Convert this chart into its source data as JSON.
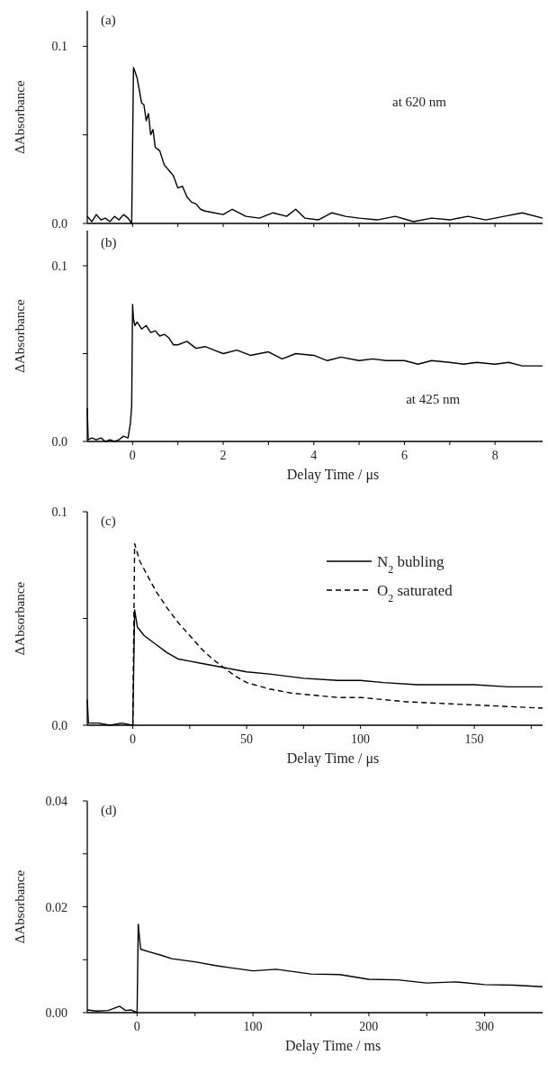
{
  "chart_data": [
    {
      "type": "line",
      "ylabel": "ΔAbsorbance",
      "annotations": [
        "(a)",
        "at 620 nm"
      ],
      "xlim": [
        -1,
        9.05
      ],
      "ylim": [
        0,
        0.12
      ],
      "tick_labels": "y",
      "xticks": [
        0,
        {
          "value": 1,
          "label": null
        },
        2,
        {
          "value": 3,
          "label": null
        },
        4,
        {
          "value": 5,
          "label": null
        },
        6,
        {
          "value": 7,
          "label": null
        },
        8
      ],
      "yticks": [
        {
          "value": 0,
          "label": "0.0"
        },
        {
          "value": 0.05,
          "label": null
        },
        {
          "value": 0.1,
          "label": "0.1"
        }
      ],
      "series": [
        {
          "color": "#000000",
          "line_style": "solid",
          "x": [
            -1,
            -0.9,
            -0.8,
            -0.7,
            -0.6,
            -0.5,
            -0.4,
            -0.3,
            -0.2,
            -0.1,
            -0.02,
            0.02,
            0.05,
            0.1,
            0.15,
            0.2,
            0.25,
            0.3,
            0.35,
            0.4,
            0.45,
            0.5,
            0.6,
            0.7,
            0.8,
            0.9,
            1.0,
            1.1,
            1.2,
            1.3,
            1.4,
            1.5,
            1.6,
            1.8,
            2.0,
            2.2,
            2.5,
            2.8,
            3.1,
            3.4,
            3.6,
            3.8,
            4.1,
            4.4,
            4.7,
            5.0,
            5.4,
            5.8,
            6.2,
            6.6,
            7.0,
            7.4,
            7.8,
            8.2,
            8.6,
            9.05
          ],
          "values": [
            0.004,
            0.001,
            0.005,
            0.002,
            0.003,
            0.001,
            0.004,
            0.002,
            0.005,
            0.003,
            0.0,
            0.088,
            0.086,
            0.082,
            0.075,
            0.068,
            0.067,
            0.058,
            0.062,
            0.05,
            0.053,
            0.043,
            0.041,
            0.033,
            0.03,
            0.027,
            0.02,
            0.021,
            0.015,
            0.012,
            0.011,
            0.008,
            0.007,
            0.006,
            0.005,
            0.008,
            0.004,
            0.003,
            0.006,
            0.004,
            0.008,
            0.003,
            0.002,
            0.006,
            0.004,
            0.003,
            0.002,
            0.004,
            0.001,
            0.003,
            0.002,
            0.004,
            0.002,
            0.004,
            0.006,
            0.003
          ]
        }
      ]
    },
    {
      "type": "line",
      "ylabel": "ΔAbsorbance",
      "xlabel": "Delay Time / μs",
      "annotations": [
        "(b)",
        "at 425 nm"
      ],
      "xlim": [
        -1,
        9.05
      ],
      "ylim": [
        0,
        0.12
      ],
      "xticks": [
        0,
        {
          "value": 1,
          "label": null
        },
        2,
        {
          "value": 3,
          "label": null
        },
        4,
        {
          "value": 5,
          "label": null
        },
        6,
        {
          "value": 7,
          "label": null
        },
        8
      ],
      "yticks": [
        {
          "value": 0,
          "label": "0.0"
        },
        {
          "value": 0.05,
          "label": null
        },
        {
          "value": 0.1,
          "label": "0.1"
        }
      ],
      "series": [
        {
          "color": "#000000",
          "line_style": "solid",
          "x": [
            -1,
            -0.98,
            -0.9,
            -0.8,
            -0.7,
            -0.6,
            -0.5,
            -0.4,
            -0.3,
            -0.2,
            -0.1,
            -0.05,
            -0.02,
            0.0,
            0.02,
            0.05,
            0.1,
            0.2,
            0.3,
            0.4,
            0.5,
            0.6,
            0.7,
            0.8,
            0.9,
            1.0,
            1.2,
            1.4,
            1.6,
            1.8,
            2.0,
            2.3,
            2.6,
            3.0,
            3.3,
            3.6,
            4.0,
            4.3,
            4.6,
            5.0,
            5.3,
            5.6,
            6.0,
            6.3,
            6.6,
            7.0,
            7.3,
            7.6,
            8.0,
            8.3,
            8.6,
            9.05
          ],
          "values": [
            0.019,
            0.001,
            0.002,
            0.001,
            0.002,
            0.0,
            0.001,
            0.0,
            0.001,
            0.003,
            0.002,
            0.01,
            0.02,
            0.078,
            0.07,
            0.066,
            0.068,
            0.064,
            0.066,
            0.062,
            0.063,
            0.06,
            0.061,
            0.059,
            0.055,
            0.055,
            0.057,
            0.053,
            0.054,
            0.052,
            0.05,
            0.052,
            0.049,
            0.051,
            0.047,
            0.05,
            0.049,
            0.046,
            0.048,
            0.046,
            0.047,
            0.046,
            0.046,
            0.044,
            0.046,
            0.045,
            0.044,
            0.045,
            0.044,
            0.045,
            0.043,
            0.043
          ]
        }
      ]
    },
    {
      "type": "line",
      "ylabel": "ΔAbsorbance",
      "xlabel": "Delay Time / μs",
      "annotations": [
        "(c)"
      ],
      "xlim": [
        -20,
        180
      ],
      "ylim": [
        0,
        0.1
      ],
      "legend": "top right",
      "xticks": [
        0,
        {
          "value": 25,
          "label": null
        },
        50,
        {
          "value": 75,
          "label": null
        },
        100,
        {
          "value": 125,
          "label": null
        },
        150,
        {
          "value": 175,
          "label": null
        }
      ],
      "yticks": [
        {
          "value": 0,
          "label": "0.0"
        },
        {
          "value": 0.05,
          "label": null
        },
        {
          "value": 0.1,
          "label": "0.1"
        }
      ],
      "series": [
        {
          "name": "N$_{2}$ bubling",
          "color": "#000000",
          "line_style": "solid",
          "x": [
            -20,
            -19.5,
            -15,
            -10,
            -5,
            0,
            0.8,
            2,
            5,
            10,
            15,
            20,
            25,
            30,
            40,
            50,
            60,
            75,
            90,
            100,
            110,
            125,
            140,
            150,
            165,
            180
          ],
          "values": [
            0.012,
            0.001,
            0.001,
            0.0,
            0.001,
            0.0,
            0.054,
            0.046,
            0.042,
            0.038,
            0.034,
            0.031,
            0.03,
            0.029,
            0.027,
            0.025,
            0.024,
            0.022,
            0.021,
            0.021,
            0.02,
            0.019,
            0.019,
            0.019,
            0.018,
            0.018
          ]
        },
        {
          "name": "O$_{2}$ saturated",
          "color": "#000000",
          "line_style": "dashed",
          "x": [
            0,
            0.8,
            3,
            5,
            10,
            15,
            20,
            25,
            30,
            35,
            40,
            45,
            50,
            60,
            70,
            80,
            90,
            100,
            120,
            140,
            160,
            180
          ],
          "values": [
            0.0,
            0.085,
            0.077,
            0.073,
            0.063,
            0.055,
            0.048,
            0.042,
            0.036,
            0.031,
            0.027,
            0.023,
            0.02,
            0.017,
            0.015,
            0.014,
            0.013,
            0.013,
            0.011,
            0.01,
            0.009,
            0.008
          ]
        }
      ]
    },
    {
      "type": "line",
      "ylabel": "ΔAbsorbance",
      "xlabel": "Delay Time / ms",
      "annotations": [
        "(d)"
      ],
      "xlim": [
        -43,
        350
      ],
      "ylim": [
        0,
        0.04
      ],
      "xticks": [
        0,
        {
          "value": 50,
          "label": null
        },
        100,
        {
          "value": 150,
          "label": null
        },
        200,
        {
          "value": 250,
          "label": null
        },
        300
      ],
      "yticks": [
        {
          "value": 0,
          "label": "0.00"
        },
        {
          "value": 0.01,
          "label": null
        },
        {
          "value": 0.02,
          "label": "0.02"
        },
        {
          "value": 0.03,
          "label": null
        },
        {
          "value": 0.04,
          "label": "0.04"
        }
      ],
      "series": [
        {
          "color": "#000000",
          "line_style": "solid",
          "x": [
            -43,
            -35,
            -25,
            -15,
            -10,
            -5,
            0,
            1,
            3,
            10,
            20,
            30,
            50,
            70,
            100,
            120,
            150,
            175,
            200,
            225,
            250,
            275,
            300,
            325,
            350
          ],
          "values": [
            0.0005,
            0.0003,
            0.0004,
            0.0012,
            0.0004,
            0.0005,
            0.0,
            0.0167,
            0.012,
            0.0115,
            0.0109,
            0.0102,
            0.0096,
            0.0088,
            0.0079,
            0.0082,
            0.0073,
            0.0072,
            0.0063,
            0.0062,
            0.0056,
            0.0058,
            0.0053,
            0.0052,
            0.0049
          ]
        }
      ]
    }
  ]
}
